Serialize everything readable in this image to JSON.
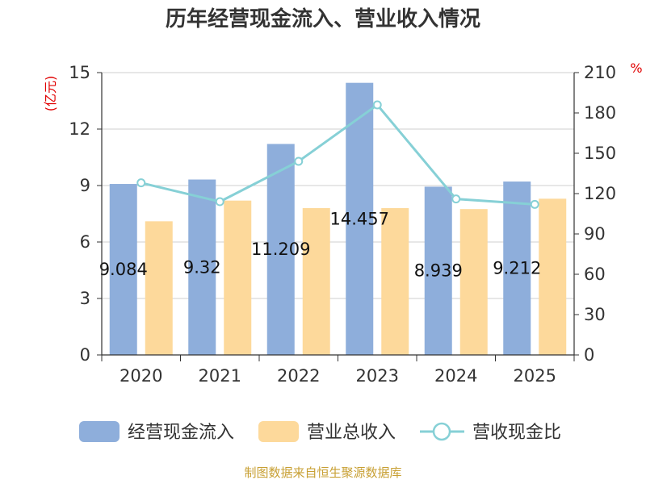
{
  "chart_data": {
    "type": "bar",
    "title": "历年经营现金流入、营业收入情况",
    "categories": [
      "2020",
      "2021",
      "2022",
      "2023",
      "2024",
      "2025"
    ],
    "y_left": {
      "unit": "(亿元)",
      "ylim": [
        0,
        15
      ],
      "ticks": [
        "0",
        "3",
        "6",
        "9",
        "12",
        "15"
      ]
    },
    "y_right": {
      "unit": "%",
      "ylim": [
        0,
        210
      ],
      "ticks": [
        "0",
        "30",
        "60",
        "90",
        "120",
        "150",
        "180",
        "210"
      ]
    },
    "series": [
      {
        "name": "经营现金流入",
        "type": "bar",
        "axis": "left",
        "color": "#8eaedb",
        "values": [
          9.084,
          9.32,
          11.209,
          14.457,
          8.939,
          9.212
        ],
        "labels": [
          "9.084",
          "9.32",
          "11.209",
          "14.457",
          "8.939",
          "9.212"
        ]
      },
      {
        "name": "营业总收入",
        "type": "bar",
        "axis": "left",
        "color": "#fdd99b",
        "values": [
          7.1,
          8.2,
          7.8,
          7.8,
          7.75,
          8.3
        ]
      },
      {
        "name": "营收现金比",
        "type": "line",
        "axis": "right",
        "color": "#86d0d6",
        "values": [
          128,
          114,
          144,
          186,
          116,
          112
        ]
      }
    ],
    "grid": true,
    "legend_position": "bottom"
  },
  "source": "制图数据来自恒生聚源数据库"
}
